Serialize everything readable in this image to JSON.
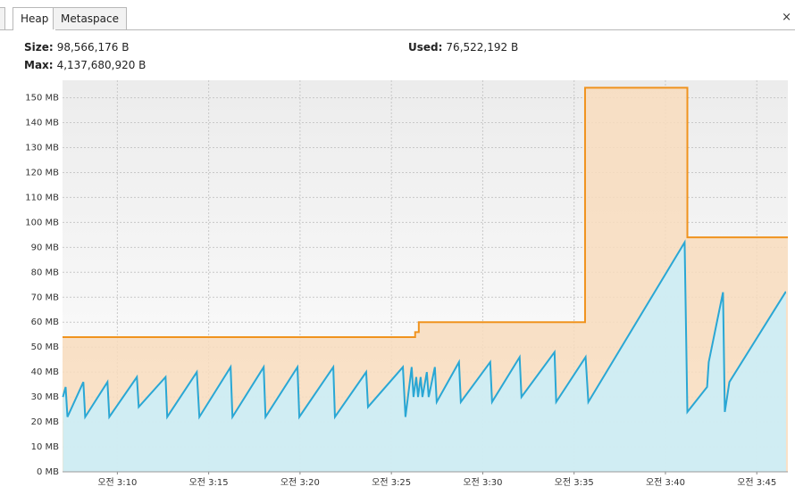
{
  "tabs": [
    "Heap",
    "Metaspace"
  ],
  "close": "×",
  "info": [
    {
      "label": "Size:",
      "value": "98,566,176 B"
    },
    {
      "label": "Used:",
      "value": "76,522,192 B"
    },
    {
      "label": "Max:",
      "value": "4,137,680,920 B"
    }
  ],
  "chart_data": {
    "type": "area",
    "xlim": [
      7.0,
      46.7
    ],
    "xticks": [
      {
        "value": 10,
        "label": "오전 3:10"
      },
      {
        "value": 15,
        "label": "오전 3:15"
      },
      {
        "value": 20,
        "label": "오전 3:20"
      },
      {
        "value": 25,
        "label": "오전 3:25"
      },
      {
        "value": 30,
        "label": "오전 3:30"
      },
      {
        "value": 35,
        "label": "오전 3:35"
      },
      {
        "value": 40,
        "label": "오전 3:40"
      },
      {
        "value": 45,
        "label": "오전 3:45"
      }
    ],
    "ylim": [
      0,
      157
    ],
    "yticks": [
      {
        "value": 0,
        "label": "0 MB"
      },
      {
        "value": 10,
        "label": "10 MB"
      },
      {
        "value": 20,
        "label": "20 MB"
      },
      {
        "value": 30,
        "label": "30 MB"
      },
      {
        "value": 40,
        "label": "40 MB"
      },
      {
        "value": 50,
        "label": "50 MB"
      },
      {
        "value": 60,
        "label": "60 MB"
      },
      {
        "value": 70,
        "label": "70 MB"
      },
      {
        "value": 80,
        "label": "80 MB"
      },
      {
        "value": 90,
        "label": "90 MB"
      },
      {
        "value": 100,
        "label": "100 MB"
      },
      {
        "value": 110,
        "label": "110 MB"
      },
      {
        "value": 120,
        "label": "120 MB"
      },
      {
        "value": 130,
        "label": "130 MB"
      },
      {
        "value": 140,
        "label": "140 MB"
      },
      {
        "value": 150,
        "label": "150 MB"
      }
    ],
    "grid": true,
    "series": [
      {
        "color": "#f0931e",
        "fill": "#f8dcbd",
        "x": [
          7.0,
          26.3,
          26.3,
          26.5,
          26.5,
          35.6,
          35.6,
          41.2,
          41.2,
          46.7
        ],
        "values": [
          54,
          54,
          56,
          56,
          60,
          60,
          154,
          154,
          94,
          94
        ]
      },
      {
        "color": "#2aa7d4",
        "fill": "#c9eefa",
        "x": [
          7.02,
          7.17,
          7.27,
          8.14,
          8.24,
          9.46,
          9.56,
          11.07,
          11.17,
          12.64,
          12.73,
          14.35,
          14.49,
          16.2,
          16.3,
          18.01,
          18.11,
          19.86,
          19.96,
          21.82,
          21.91,
          23.62,
          23.72,
          25.63,
          25.77,
          26.11,
          26.21,
          26.36,
          26.46,
          26.6,
          26.7,
          26.94,
          27.04,
          27.38,
          27.48,
          28.7,
          28.8,
          30.41,
          30.51,
          32.02,
          32.12,
          33.93,
          34.02,
          35.63,
          35.78,
          41.05,
          41.2,
          42.28,
          42.37,
          43.15,
          43.25,
          43.5,
          46.57,
          46.6
        ],
        "values": [
          30,
          34,
          22,
          36,
          22,
          36,
          22,
          38,
          26,
          38,
          22,
          40,
          22,
          42,
          22,
          42,
          22,
          42,
          22,
          42,
          22,
          40,
          26,
          42,
          22,
          42,
          30,
          38,
          30,
          38,
          30,
          40,
          30,
          42,
          28,
          44,
          28,
          44,
          28,
          46,
          30,
          48,
          28,
          46,
          28,
          92,
          24,
          34,
          44,
          72,
          24,
          36,
          72,
          72
        ]
      }
    ]
  }
}
